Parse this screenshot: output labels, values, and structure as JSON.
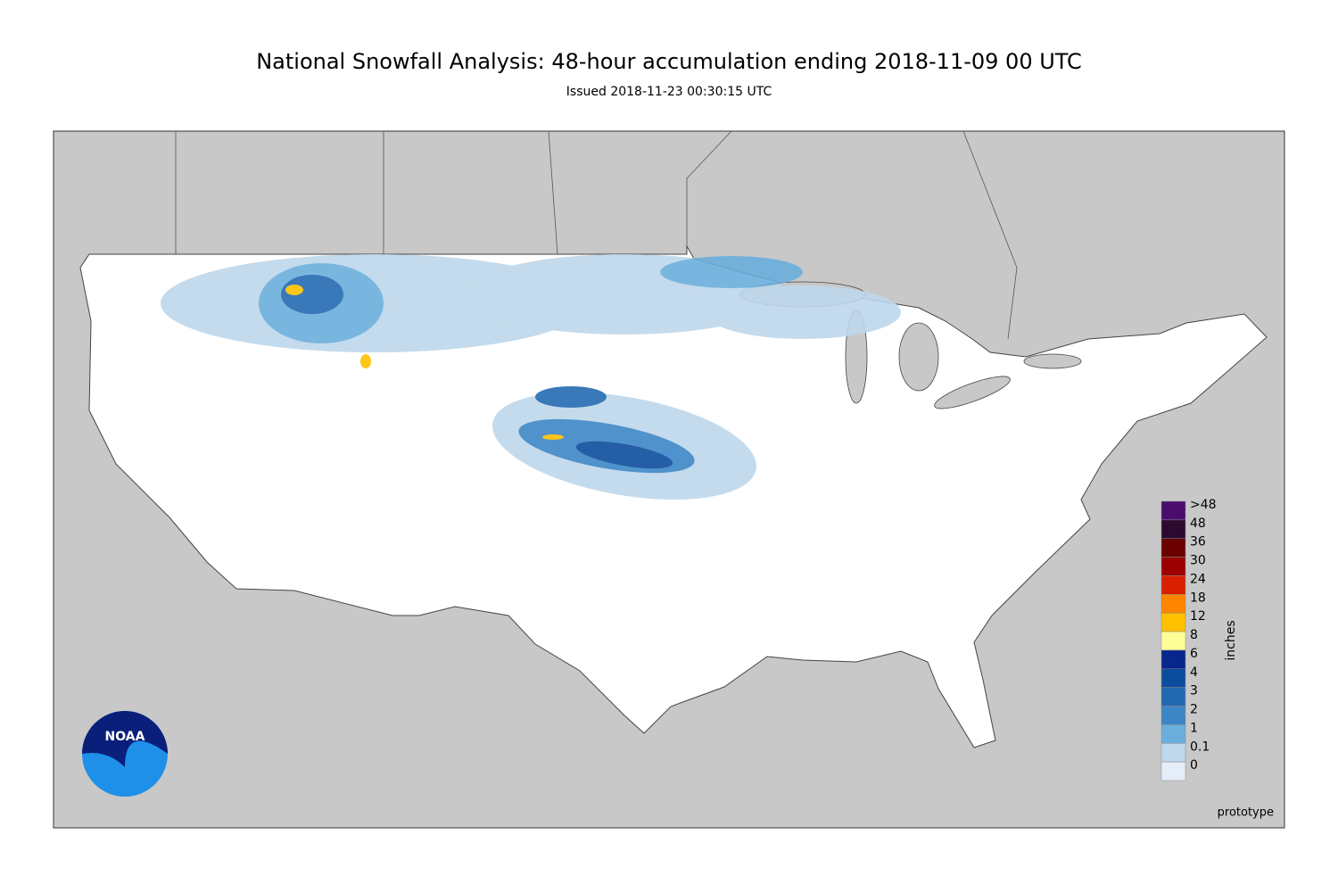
{
  "header": {
    "title": "National Snowfall Analysis: 48-hour accumulation ending 2018-11-09 00 UTC",
    "subtitle": "Issued 2018-11-23 00:30:15 UTC"
  },
  "legend": {
    "unit": "inches",
    "entries": [
      {
        "label": ">48",
        "color": "#4a0d6e"
      },
      {
        "label": "48",
        "color": "#2c0a30"
      },
      {
        "label": "36",
        "color": "#6a0000"
      },
      {
        "label": "30",
        "color": "#9c0000"
      },
      {
        "label": "24",
        "color": "#d82000"
      },
      {
        "label": "18",
        "color": "#ff8400"
      },
      {
        "label": "12",
        "color": "#ffc000"
      },
      {
        "label": "8",
        "color": "#ffff99"
      },
      {
        "label": "6",
        "color": "#08268c"
      },
      {
        "label": "4",
        "color": "#0c4c9e"
      },
      {
        "label": "3",
        "color": "#2369b2"
      },
      {
        "label": "2",
        "color": "#3d86c6"
      },
      {
        "label": "1",
        "color": "#6aaedc"
      },
      {
        "label": "0.1",
        "color": "#bed7eb"
      },
      {
        "label": "0",
        "color": "#e5eef8"
      }
    ]
  },
  "footer": {
    "note": "prototype"
  },
  "logo": {
    "text": "NOAA"
  }
}
